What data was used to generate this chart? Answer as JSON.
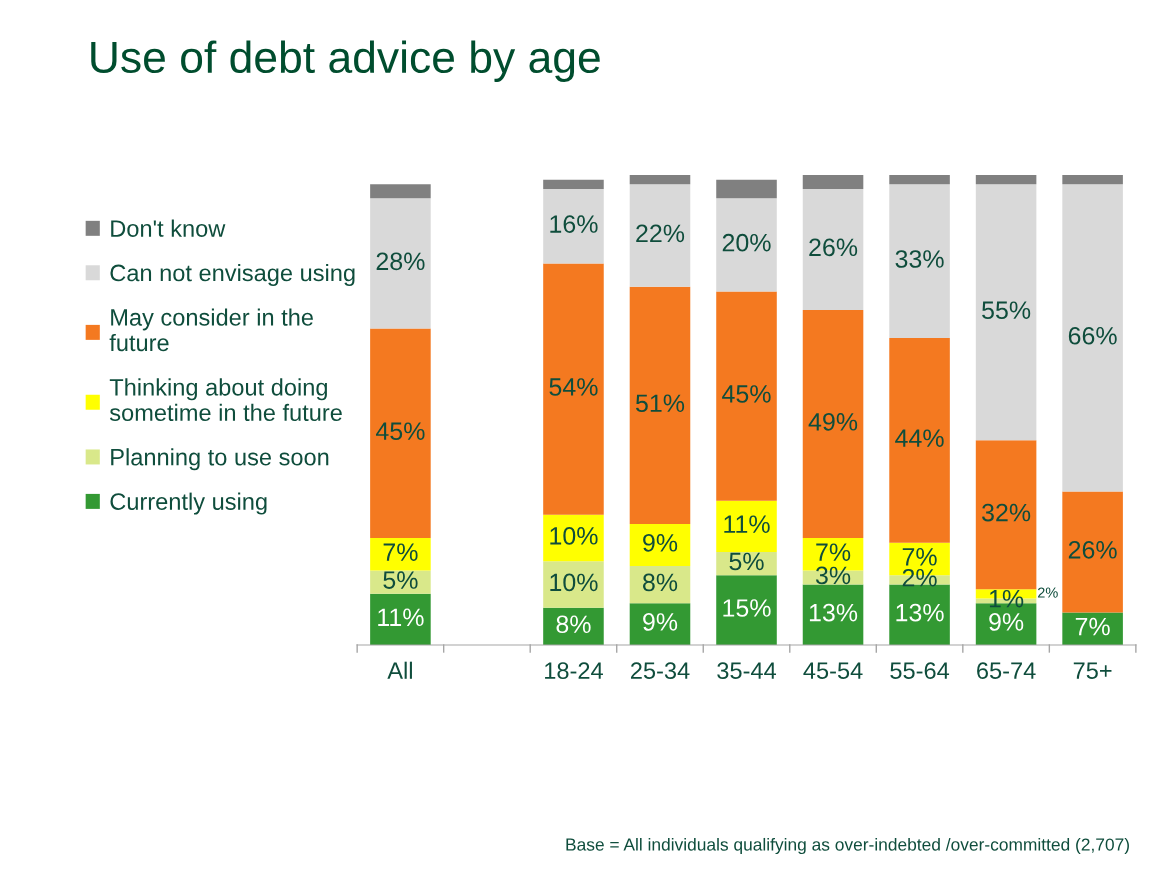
{
  "chart_data": {
    "type": "bar",
    "stacked": true,
    "title": "Use of debt advice by age",
    "categories": [
      "All",
      null,
      "18-24",
      "25-34",
      "35-44",
      "45-54",
      "55-64",
      "65-74",
      "75+"
    ],
    "series": [
      {
        "name": "Currently using",
        "color": "#339933",
        "values": [
          11,
          null,
          8,
          9,
          15,
          13,
          13,
          9,
          7
        ],
        "value_labels": [
          "11%",
          null,
          "8%",
          "9%",
          "15%",
          "13%",
          "13%",
          "9%",
          "7%"
        ]
      },
      {
        "name": "Planning to use soon",
        "color": "#d9e88a",
        "values": [
          5,
          null,
          10,
          8,
          5,
          3,
          2,
          1,
          0
        ],
        "value_labels": [
          "5%",
          null,
          "10%",
          "8%",
          "5%",
          "3%",
          "2%",
          "1%",
          null
        ]
      },
      {
        "name": "Thinking about doing\nsometime in the future",
        "color": "#ffff00",
        "values": [
          7,
          null,
          10,
          9,
          11,
          7,
          7,
          2,
          0
        ],
        "value_labels": [
          "7%",
          null,
          "10%",
          "9%",
          "11%",
          "7%",
          "7%",
          "2%",
          null
        ]
      },
      {
        "name": "May consider in the\nfuture",
        "color": "#f47920",
        "values": [
          45,
          null,
          54,
          51,
          45,
          49,
          44,
          32,
          26
        ],
        "value_labels": [
          "45%",
          null,
          "54%",
          "51%",
          "45%",
          "49%",
          "44%",
          "32%",
          "26%"
        ]
      },
      {
        "name": "Can not envisage using",
        "color": "#d9d9d9",
        "values": [
          28,
          null,
          16,
          22,
          20,
          26,
          33,
          55,
          66
        ],
        "value_labels": [
          "28%",
          null,
          "16%",
          "22%",
          "20%",
          "26%",
          "33%",
          "55%",
          "66%"
        ]
      },
      {
        "name": "Don't know",
        "color": "#808080",
        "values": [
          3,
          null,
          2,
          2,
          4,
          3,
          2,
          2,
          2
        ],
        "value_labels": [
          null,
          null,
          null,
          null,
          null,
          null,
          null,
          null,
          null
        ]
      }
    ],
    "legend": "left",
    "annotations": [
      "Base = All individuals qualifying as over-indebted /over-committed (2,707)"
    ]
  }
}
